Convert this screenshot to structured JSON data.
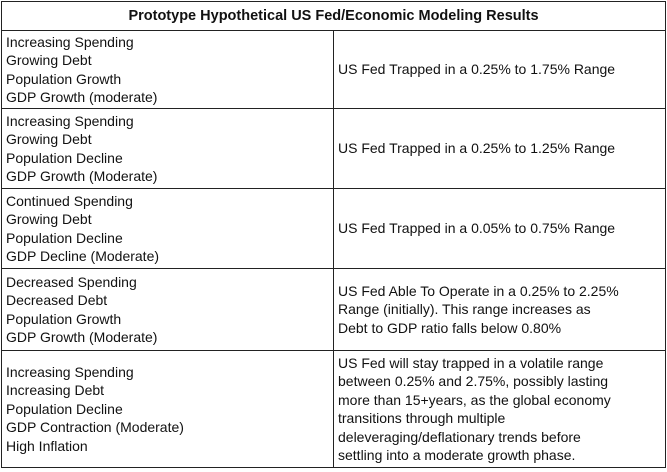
{
  "table": {
    "title": "Prototype Hypothetical US Fed/Economic Modeling Results",
    "rows": [
      [
        [
          "Increasing Spending",
          "Growing Debt",
          "Population Growth",
          "GDP Growth (moderate)"
        ],
        [
          "US Fed Trapped in a 0.25% to 1.75% Range"
        ]
      ],
      [
        [
          "Increasing Spending",
          "Growing Debt",
          "Population Decline",
          "GDP Growth (Moderate)"
        ],
        [
          "US Fed Trapped in a 0.25% to 1.25% Range"
        ]
      ],
      [
        [
          "Continued Spending",
          "Growing Debt",
          "Population Decline",
          "GDP Decline (Moderate)"
        ],
        [
          "US Fed Trapped in a 0.05% to 0.75% Range"
        ]
      ],
      [
        [
          "Decreased Spending",
          "Decreased Debt",
          "Population Growth",
          "GDP Growth (Moderate)"
        ],
        [
          "US Fed Able To Operate in a 0.25% to 2.25%",
          "Range (initially).  This range increases as",
          "Debt to GDP ratio falls below 0.80%"
        ]
      ],
      [
        [
          "Increasing Spending",
          "Increasing Debt",
          "Population Decline",
          "GDP Contraction (Moderate)",
          "High Inflation"
        ],
        [
          "US Fed will stay trapped in a volatile range",
          "between 0.25% and 2.75%, possibly lasting",
          "more than 15+years, as the global economy",
          "transitions through multiple",
          "deleveraging/deflationary trends before",
          "settling into a moderate growth phase."
        ]
      ]
    ]
  }
}
